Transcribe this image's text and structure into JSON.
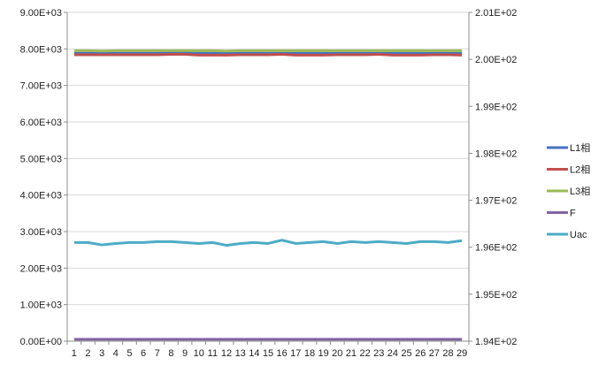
{
  "chart_data": {
    "type": "line",
    "title": "",
    "xlabel": "",
    "ylabel": "",
    "grid": true,
    "legend_position": "right",
    "x": [
      1,
      2,
      3,
      4,
      5,
      6,
      7,
      8,
      9,
      10,
      11,
      12,
      13,
      14,
      15,
      16,
      17,
      18,
      19,
      20,
      21,
      22,
      23,
      24,
      25,
      26,
      27,
      28,
      29
    ],
    "x_tick_labels": [
      "1",
      "2",
      "3",
      "4",
      "5",
      "6",
      "7",
      "8",
      "9",
      "10",
      "11",
      "12",
      "13",
      "14",
      "15",
      "16",
      "17",
      "18",
      "19",
      "20",
      "21",
      "22",
      "23",
      "24",
      "25",
      "26",
      "27",
      "28",
      "29"
    ],
    "y_left": {
      "ylim": [
        0,
        9000
      ],
      "tick_values": [
        0,
        1000,
        2000,
        3000,
        4000,
        5000,
        6000,
        7000,
        8000,
        9000
      ],
      "tick_labels": [
        "0.00E+00",
        "1.00E+03",
        "2.00E+03",
        "3.00E+03",
        "4.00E+03",
        "5.00E+03",
        "6.00E+03",
        "7.00E+03",
        "8.00E+03",
        "9.00E+03"
      ]
    },
    "y_right": {
      "ylim": [
        194.0,
        201.0
      ],
      "tick_values": [
        194,
        195,
        196,
        197,
        198,
        199,
        200,
        201
      ],
      "tick_labels": [
        "1.94E+02",
        "1.95E+02",
        "1.96E+02",
        "1.97E+02",
        "1.98E+02",
        "1.99E+02",
        "2.00E+02",
        "2.01E+02"
      ]
    },
    "series": [
      {
        "name": "L1相",
        "axis": "left",
        "color": "#4472c4",
        "values": [
          7880,
          7880,
          7880,
          7880,
          7880,
          7880,
          7880,
          7890,
          7890,
          7880,
          7880,
          7880,
          7880,
          7880,
          7880,
          7880,
          7880,
          7880,
          7880,
          7880,
          7880,
          7880,
          7880,
          7880,
          7880,
          7880,
          7880,
          7880,
          7880
        ]
      },
      {
        "name": "L2相",
        "axis": "left",
        "color": "#c0504d",
        "values": [
          7840,
          7840,
          7840,
          7840,
          7840,
          7840,
          7840,
          7850,
          7850,
          7830,
          7830,
          7830,
          7840,
          7840,
          7840,
          7850,
          7830,
          7830,
          7830,
          7840,
          7840,
          7840,
          7850,
          7830,
          7830,
          7830,
          7840,
          7840,
          7830
        ]
      },
      {
        "name": "L3相",
        "axis": "left",
        "color": "#9bbb59",
        "values": [
          7950,
          7950,
          7940,
          7950,
          7950,
          7950,
          7950,
          7950,
          7950,
          7950,
          7950,
          7940,
          7950,
          7950,
          7950,
          7950,
          7950,
          7950,
          7950,
          7950,
          7950,
          7950,
          7950,
          7950,
          7950,
          7950,
          7950,
          7950,
          7950
        ]
      },
      {
        "name": "F",
        "axis": "left",
        "color": "#8064a2",
        "values": [
          50,
          50,
          50,
          50,
          50,
          50,
          50,
          50,
          50,
          50,
          50,
          50,
          50,
          50,
          50,
          50,
          50,
          50,
          50,
          50,
          50,
          50,
          50,
          50,
          50,
          50,
          50,
          50,
          50
        ]
      },
      {
        "name": "Uac",
        "axis": "right",
        "color": "#4bacc6",
        "values": [
          196.1,
          196.1,
          196.05,
          196.08,
          196.1,
          196.1,
          196.12,
          196.12,
          196.1,
          196.08,
          196.1,
          196.04,
          196.08,
          196.1,
          196.08,
          196.15,
          196.08,
          196.1,
          196.12,
          196.08,
          196.12,
          196.1,
          196.12,
          196.1,
          196.08,
          196.12,
          196.12,
          196.1,
          196.14
        ]
      }
    ]
  }
}
